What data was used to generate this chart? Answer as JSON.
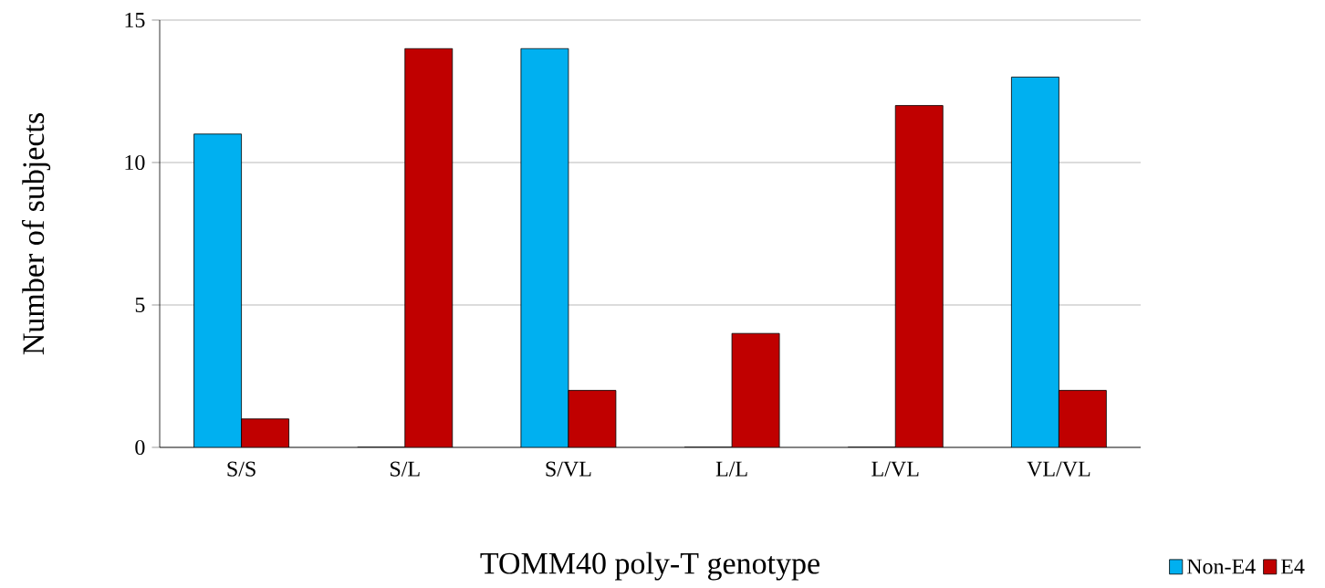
{
  "chart_data": {
    "type": "bar",
    "xlabel": "TOMM40 poly-T genotype",
    "ylabel": "Number of subjects",
    "categories": [
      "S/S",
      "S/L",
      "S/VL",
      "L/L",
      "L/VL",
      "VL/VL"
    ],
    "series": [
      {
        "name": "Non-E4",
        "color": "#00b0f0",
        "values": [
          11,
          0,
          14,
          0,
          0,
          13
        ]
      },
      {
        "name": "E4",
        "color": "#c00000",
        "values": [
          1,
          14,
          2,
          4,
          12,
          2
        ]
      }
    ],
    "ylim": [
      0,
      15
    ],
    "yticks": [
      0,
      5,
      10,
      15
    ],
    "grid": "y",
    "legend": "bottom right"
  }
}
